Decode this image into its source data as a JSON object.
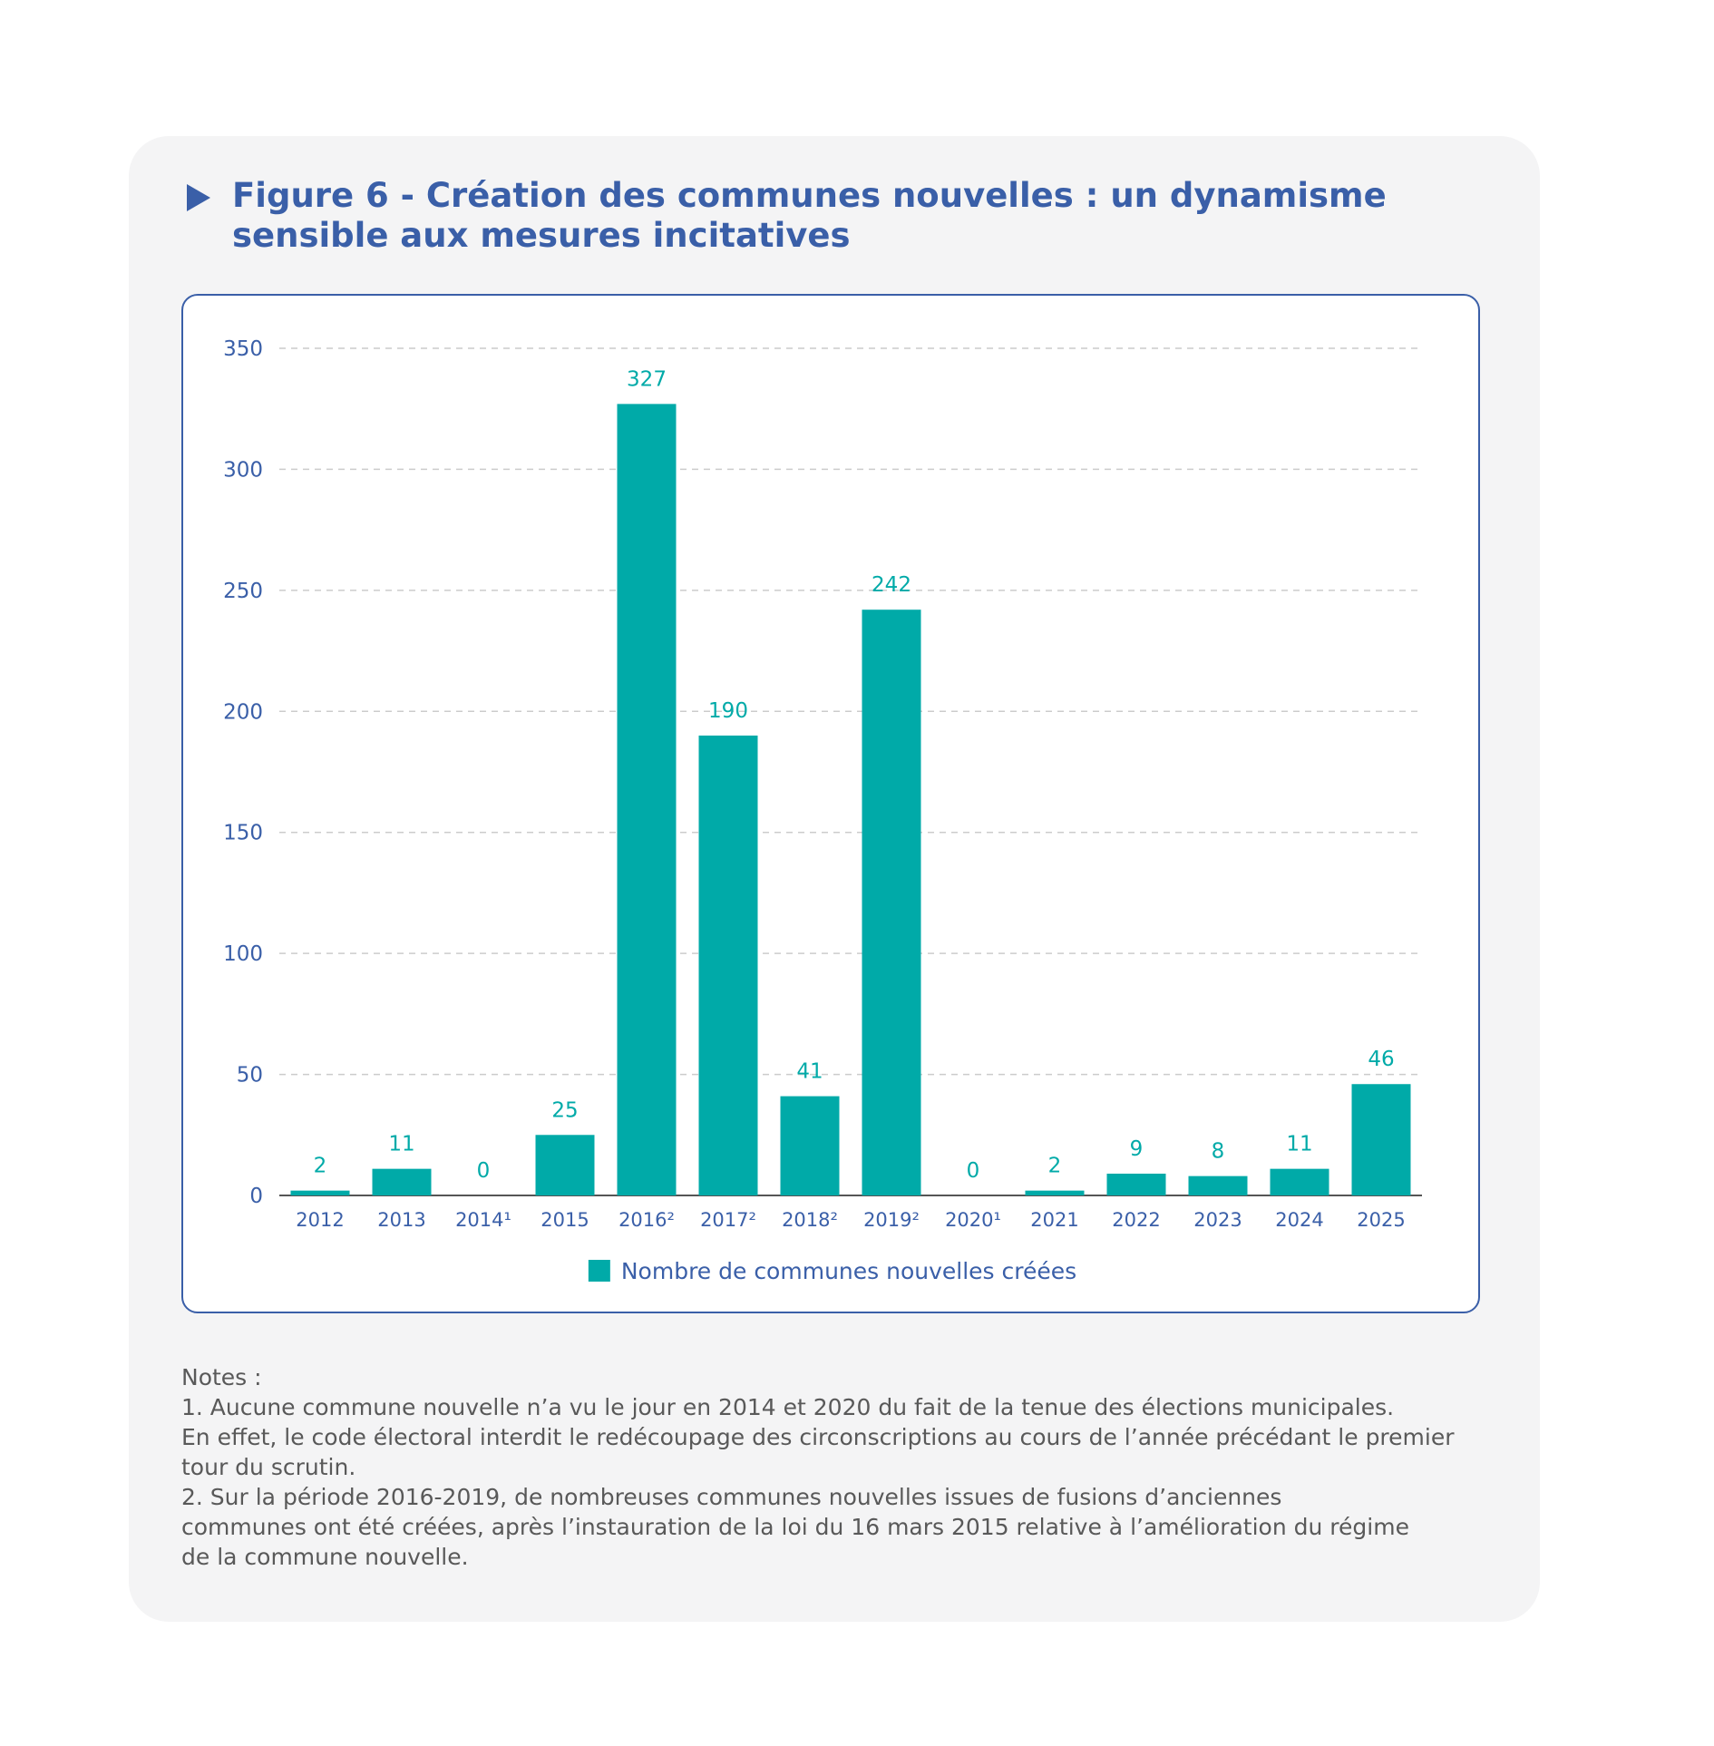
{
  "figure": {
    "title": "Figure 6 - Création des communes nouvelles : un dynamisme sensible aux mesures incitatives"
  },
  "chart_data": {
    "type": "bar",
    "categories": [
      "2012",
      "2013",
      "2014¹",
      "2015",
      "2016²",
      "2017²",
      "2018²",
      "2019²",
      "2020¹",
      "2021",
      "2022",
      "2023",
      "2024",
      "2025"
    ],
    "values": [
      2,
      11,
      0,
      25,
      327,
      190,
      41,
      242,
      0,
      2,
      9,
      8,
      11,
      46
    ],
    "series": [
      {
        "name": "Nombre de communes nouvelles créées",
        "values": [
          2,
          11,
          0,
          25,
          327,
          190,
          41,
          242,
          0,
          2,
          9,
          8,
          11,
          46
        ]
      }
    ],
    "title": "",
    "xlabel": "",
    "ylabel": "",
    "ylim": [
      0,
      350
    ],
    "yticks": [
      0,
      50,
      100,
      150,
      200,
      250,
      300,
      350
    ],
    "grid": true,
    "data_labels": true,
    "legend_position": "bottom-center",
    "colors": {
      "bar": "#00aaa8",
      "axis_text": "#3a5fa8",
      "label_text": "#00aaa8",
      "grid": "#cccccc"
    }
  },
  "notes": {
    "heading": "Notes :",
    "lines": [
      "1. Aucune commune nouvelle n’a vu le jour en 2014 et 2020 du fait de la tenue des élections municipales.",
      "En effet, le code électoral interdit le redécoupage des circonscriptions au cours de l’année précédant le premier",
      "tour du scrutin.",
      "2. Sur la période 2016-2019, de nombreuses communes nouvelles issues de fusions d’anciennes",
      "communes ont été créées, après l’instauration de la loi du 16 mars 2015 relative à l’amélioration du régime",
      "de la commune nouvelle."
    ]
  }
}
